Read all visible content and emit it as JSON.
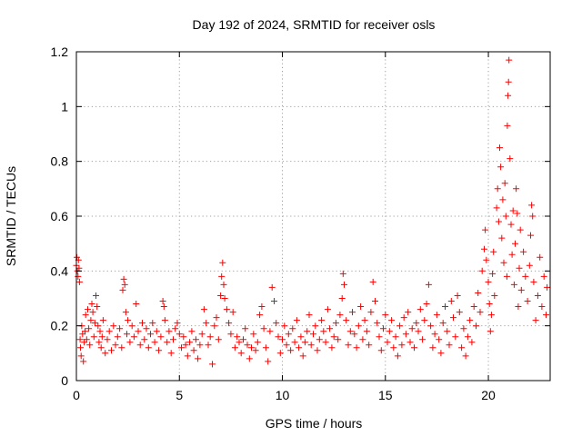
{
  "chart_data": {
    "type": "scatter",
    "title": "Day 192 of 2024, SRMTID for receiver osls",
    "xlabel": "GPS time / hours",
    "ylabel": "SRMTID / TECUs",
    "xlim": [
      0,
      23
    ],
    "ylim": [
      0,
      1.2
    ],
    "xticks": [
      0,
      5,
      10,
      15,
      20
    ],
    "xtick_labels": [
      "0",
      "5",
      "10",
      "15",
      "20"
    ],
    "yticks": [
      0,
      0.2,
      0.4,
      0.6,
      0.8,
      1.0,
      1.2
    ],
    "ytick_labels": [
      "0",
      "0.2",
      "0.4",
      "0.6",
      "0.8",
      "1",
      "1.2"
    ],
    "grid": true,
    "marker": "+",
    "marker_color": "#ff0000",
    "series": [
      {
        "name": "SRMTID",
        "points": [
          [
            0.0,
            0.42
          ],
          [
            0.02,
            0.45
          ],
          [
            0.05,
            0.4
          ],
          [
            0.08,
            0.38
          ],
          [
            0.1,
            0.44
          ],
          [
            0.13,
            0.41
          ],
          [
            0.15,
            0.36
          ],
          [
            0.18,
            0.15
          ],
          [
            0.2,
            0.12
          ],
          [
            0.23,
            0.09
          ],
          [
            0.26,
            0.2
          ],
          [
            0.3,
            0.17
          ],
          [
            0.34,
            0.07
          ],
          [
            0.38,
            0.14
          ],
          [
            0.42,
            0.18
          ],
          [
            0.45,
            0.24
          ],
          [
            0.5,
            0.15
          ],
          [
            0.55,
            0.26
          ],
          [
            0.6,
            0.19
          ],
          [
            0.65,
            0.13
          ],
          [
            0.7,
            0.22
          ],
          [
            0.75,
            0.28
          ],
          [
            0.8,
            0.25
          ],
          [
            0.85,
            0.16
          ],
          [
            0.9,
            0.21
          ],
          [
            0.95,
            0.31
          ],
          [
            1.0,
            0.27
          ],
          [
            1.05,
            0.2
          ],
          [
            1.1,
            0.14
          ],
          [
            1.15,
            0.18
          ],
          [
            1.2,
            0.12
          ],
          [
            1.25,
            0.16
          ],
          [
            1.3,
            0.22
          ],
          [
            1.4,
            0.1
          ],
          [
            1.5,
            0.15
          ],
          [
            1.6,
            0.18
          ],
          [
            1.7,
            0.11
          ],
          [
            1.8,
            0.2
          ],
          [
            1.9,
            0.13
          ],
          [
            2.0,
            0.16
          ],
          [
            2.1,
            0.19
          ],
          [
            2.2,
            0.12
          ],
          [
            2.25,
            0.33
          ],
          [
            2.3,
            0.37
          ],
          [
            2.35,
            0.35
          ],
          [
            2.4,
            0.25
          ],
          [
            2.45,
            0.17
          ],
          [
            2.5,
            0.22
          ],
          [
            2.6,
            0.14
          ],
          [
            2.7,
            0.2
          ],
          [
            2.8,
            0.16
          ],
          [
            2.9,
            0.28
          ],
          [
            3.0,
            0.18
          ],
          [
            3.1,
            0.13
          ],
          [
            3.2,
            0.21
          ],
          [
            3.3,
            0.15
          ],
          [
            3.4,
            0.19
          ],
          [
            3.5,
            0.12
          ],
          [
            3.6,
            0.17
          ],
          [
            3.7,
            0.21
          ],
          [
            3.8,
            0.14
          ],
          [
            3.9,
            0.18
          ],
          [
            4.0,
            0.11
          ],
          [
            4.1,
            0.16
          ],
          [
            4.2,
            0.29
          ],
          [
            4.25,
            0.27
          ],
          [
            4.3,
            0.22
          ],
          [
            4.4,
            0.14
          ],
          [
            4.5,
            0.18
          ],
          [
            4.6,
            0.1
          ],
          [
            4.7,
            0.15
          ],
          [
            4.8,
            0.19
          ],
          [
            4.9,
            0.21
          ],
          [
            5.0,
            0.17
          ],
          [
            5.1,
            0.12
          ],
          [
            5.2,
            0.16
          ],
          [
            5.3,
            0.13
          ],
          [
            5.4,
            0.09
          ],
          [
            5.5,
            0.14
          ],
          [
            5.6,
            0.18
          ],
          [
            5.7,
            0.11
          ],
          [
            5.8,
            0.15
          ],
          [
            5.9,
            0.08
          ],
          [
            6.0,
            0.13
          ],
          [
            6.1,
            0.17
          ],
          [
            6.2,
            0.26
          ],
          [
            6.3,
            0.21
          ],
          [
            6.4,
            0.13
          ],
          [
            6.5,
            0.16
          ],
          [
            6.6,
            0.06
          ],
          [
            6.7,
            0.2
          ],
          [
            6.8,
            0.23
          ],
          [
            6.9,
            0.15
          ],
          [
            7.0,
            0.31
          ],
          [
            7.05,
            0.38
          ],
          [
            7.1,
            0.43
          ],
          [
            7.15,
            0.35
          ],
          [
            7.2,
            0.3
          ],
          [
            7.3,
            0.26
          ],
          [
            7.4,
            0.21
          ],
          [
            7.5,
            0.17
          ],
          [
            7.6,
            0.25
          ],
          [
            7.7,
            0.12
          ],
          [
            7.8,
            0.16
          ],
          [
            7.9,
            0.14
          ],
          [
            8.0,
            0.1
          ],
          [
            8.1,
            0.15
          ],
          [
            8.2,
            0.19
          ],
          [
            8.3,
            0.13
          ],
          [
            8.4,
            0.08
          ],
          [
            8.5,
            0.12
          ],
          [
            8.6,
            0.17
          ],
          [
            8.7,
            0.11
          ],
          [
            8.8,
            0.14
          ],
          [
            8.9,
            0.24
          ],
          [
            9.0,
            0.27
          ],
          [
            9.1,
            0.19
          ],
          [
            9.2,
            0.12
          ],
          [
            9.3,
            0.07
          ],
          [
            9.4,
            0.18
          ],
          [
            9.5,
            0.34
          ],
          [
            9.6,
            0.29
          ],
          [
            9.7,
            0.21
          ],
          [
            9.8,
            0.16
          ],
          [
            9.9,
            0.1
          ],
          [
            10.0,
            0.15
          ],
          [
            10.1,
            0.2
          ],
          [
            10.2,
            0.13
          ],
          [
            10.3,
            0.17
          ],
          [
            10.4,
            0.11
          ],
          [
            10.5,
            0.19
          ],
          [
            10.6,
            0.14
          ],
          [
            10.7,
            0.22
          ],
          [
            10.8,
            0.12
          ],
          [
            10.9,
            0.16
          ],
          [
            11.0,
            0.09
          ],
          [
            11.1,
            0.14
          ],
          [
            11.2,
            0.18
          ],
          [
            11.3,
            0.24
          ],
          [
            11.4,
            0.13
          ],
          [
            11.5,
            0.17
          ],
          [
            11.6,
            0.2
          ],
          [
            11.7,
            0.11
          ],
          [
            11.8,
            0.15
          ],
          [
            11.9,
            0.22
          ],
          [
            12.0,
            0.18
          ],
          [
            12.1,
            0.14
          ],
          [
            12.2,
            0.26
          ],
          [
            12.3,
            0.19
          ],
          [
            12.4,
            0.12
          ],
          [
            12.5,
            0.16
          ],
          [
            12.6,
            0.21
          ],
          [
            12.7,
            0.15
          ],
          [
            12.8,
            0.24
          ],
          [
            12.9,
            0.3
          ],
          [
            12.95,
            0.39
          ],
          [
            13.0,
            0.35
          ],
          [
            13.1,
            0.22
          ],
          [
            13.2,
            0.13
          ],
          [
            13.3,
            0.18
          ],
          [
            13.4,
            0.25
          ],
          [
            13.5,
            0.17
          ],
          [
            13.6,
            0.12
          ],
          [
            13.7,
            0.2
          ],
          [
            13.8,
            0.27
          ],
          [
            13.9,
            0.15
          ],
          [
            14.0,
            0.22
          ],
          [
            14.1,
            0.18
          ],
          [
            14.2,
            0.13
          ],
          [
            14.3,
            0.25
          ],
          [
            14.4,
            0.36
          ],
          [
            14.5,
            0.29
          ],
          [
            14.6,
            0.21
          ],
          [
            14.7,
            0.16
          ],
          [
            14.8,
            0.11
          ],
          [
            14.9,
            0.19
          ],
          [
            15.0,
            0.24
          ],
          [
            15.1,
            0.14
          ],
          [
            15.2,
            0.18
          ],
          [
            15.3,
            0.22
          ],
          [
            15.4,
            0.12
          ],
          [
            15.5,
            0.16
          ],
          [
            15.6,
            0.09
          ],
          [
            15.7,
            0.2
          ],
          [
            15.8,
            0.13
          ],
          [
            15.9,
            0.23
          ],
          [
            16.0,
            0.17
          ],
          [
            16.1,
            0.25
          ],
          [
            16.2,
            0.14
          ],
          [
            16.3,
            0.19
          ],
          [
            16.4,
            0.12
          ],
          [
            16.5,
            0.21
          ],
          [
            16.6,
            0.18
          ],
          [
            16.7,
            0.26
          ],
          [
            16.8,
            0.15
          ],
          [
            16.9,
            0.22
          ],
          [
            17.0,
            0.28
          ],
          [
            17.1,
            0.35
          ],
          [
            17.2,
            0.2
          ],
          [
            17.3,
            0.12
          ],
          [
            17.4,
            0.17
          ],
          [
            17.5,
            0.24
          ],
          [
            17.6,
            0.15
          ],
          [
            17.7,
            0.1
          ],
          [
            17.8,
            0.21
          ],
          [
            17.9,
            0.27
          ],
          [
            18.0,
            0.18
          ],
          [
            18.1,
            0.13
          ],
          [
            18.2,
            0.29
          ],
          [
            18.3,
            0.23
          ],
          [
            18.4,
            0.16
          ],
          [
            18.5,
            0.31
          ],
          [
            18.6,
            0.25
          ],
          [
            18.7,
            0.12
          ],
          [
            18.8,
            0.19
          ],
          [
            18.9,
            0.09
          ],
          [
            19.0,
            0.16
          ],
          [
            19.1,
            0.22
          ],
          [
            19.2,
            0.14
          ],
          [
            19.3,
            0.27
          ],
          [
            19.4,
            0.2
          ],
          [
            19.5,
            0.32
          ],
          [
            19.6,
            0.25
          ],
          [
            19.7,
            0.4
          ],
          [
            19.8,
            0.48
          ],
          [
            19.85,
            0.55
          ],
          [
            19.9,
            0.44
          ],
          [
            20.0,
            0.36
          ],
          [
            20.05,
            0.28
          ],
          [
            20.1,
            0.18
          ],
          [
            20.15,
            0.24
          ],
          [
            20.2,
            0.39
          ],
          [
            20.25,
            0.47
          ],
          [
            20.3,
            0.31
          ],
          [
            20.4,
            0.63
          ],
          [
            20.45,
            0.7
          ],
          [
            20.5,
            0.58
          ],
          [
            20.55,
            0.85
          ],
          [
            20.6,
            0.78
          ],
          [
            20.65,
            0.52
          ],
          [
            20.7,
            0.66
          ],
          [
            20.75,
            0.43
          ],
          [
            20.8,
            0.72
          ],
          [
            20.85,
            0.6
          ],
          [
            20.9,
            0.38
          ],
          [
            20.92,
            0.93
          ],
          [
            20.95,
            1.04
          ],
          [
            20.98,
            1.09
          ],
          [
            21.0,
            1.17
          ],
          [
            21.05,
            0.81
          ],
          [
            21.1,
            0.57
          ],
          [
            21.15,
            0.46
          ],
          [
            21.2,
            0.62
          ],
          [
            21.25,
            0.35
          ],
          [
            21.3,
            0.5
          ],
          [
            21.35,
            0.7
          ],
          [
            21.4,
            0.61
          ],
          [
            21.45,
            0.27
          ],
          [
            21.5,
            0.41
          ],
          [
            21.55,
            0.55
          ],
          [
            21.6,
            0.33
          ],
          [
            21.7,
            0.47
          ],
          [
            21.8,
            0.38
          ],
          [
            21.9,
            0.29
          ],
          [
            22.0,
            0.42
          ],
          [
            22.05,
            0.53
          ],
          [
            22.1,
            0.64
          ],
          [
            22.15,
            0.6
          ],
          [
            22.2,
            0.36
          ],
          [
            22.3,
            0.22
          ],
          [
            22.4,
            0.31
          ],
          [
            22.5,
            0.45
          ],
          [
            22.6,
            0.27
          ],
          [
            22.7,
            0.38
          ],
          [
            22.8,
            0.24
          ],
          [
            22.85,
            0.34
          ]
        ]
      }
    ]
  }
}
